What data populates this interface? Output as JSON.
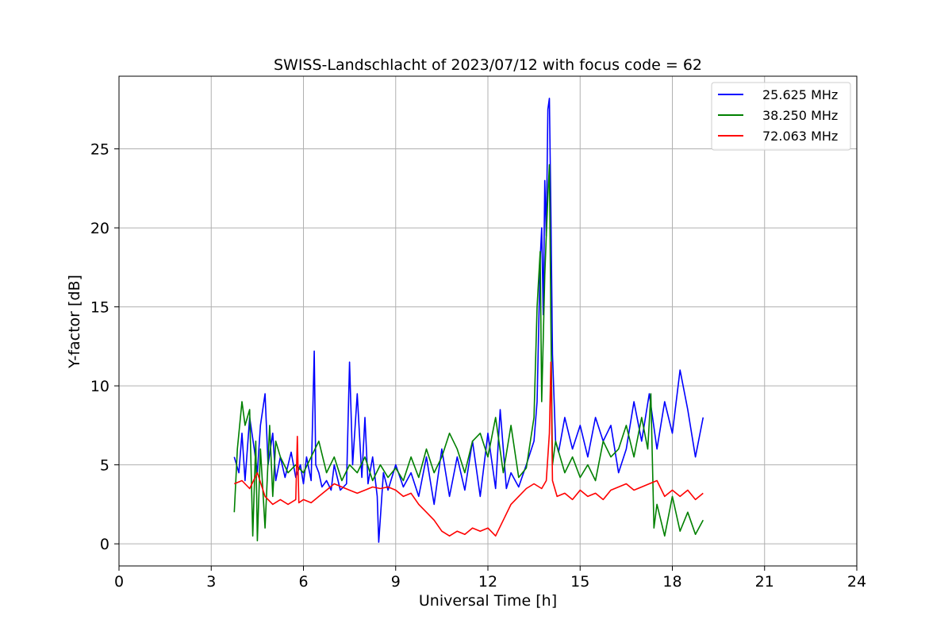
{
  "chart_data": {
    "type": "line",
    "title": "SWISS-Landschlacht of 2023/07/12 with focus code = 62",
    "xlabel": "Universal Time [h]",
    "ylabel": "Y-factor [dB]",
    "xlim": [
      0,
      24
    ],
    "ylim": [
      -1.4,
      29.6
    ],
    "x_ticks": [
      0,
      3,
      6,
      9,
      12,
      15,
      18,
      21,
      24
    ],
    "y_ticks": [
      0,
      5,
      10,
      15,
      20,
      25
    ],
    "grid": true,
    "legend_position": "top-right",
    "series": [
      {
        "name": "25.625 MHz",
        "color": "#0000ff",
        "x": [
          3.75,
          3.9,
          4.0,
          4.1,
          4.25,
          4.4,
          4.5,
          4.6,
          4.75,
          4.85,
          5.0,
          5.1,
          5.25,
          5.4,
          5.6,
          5.75,
          5.9,
          6.0,
          6.1,
          6.25,
          6.35,
          6.4,
          6.5,
          6.6,
          6.75,
          6.9,
          7.0,
          7.2,
          7.4,
          7.5,
          7.6,
          7.75,
          7.9,
          8.0,
          8.1,
          8.25,
          8.4,
          8.45,
          8.6,
          8.75,
          9.0,
          9.25,
          9.5,
          9.75,
          10.0,
          10.25,
          10.5,
          10.75,
          11.0,
          11.25,
          11.5,
          11.75,
          12.0,
          12.25,
          12.4,
          12.6,
          12.75,
          13.0,
          13.25,
          13.5,
          13.6,
          13.7,
          13.75,
          13.8,
          13.85,
          13.9,
          13.95,
          14.0,
          14.05,
          14.1,
          14.2,
          14.3,
          14.5,
          14.75,
          15.0,
          15.25,
          15.5,
          15.75,
          16.0,
          16.25,
          16.5,
          16.75,
          17.0,
          17.25,
          17.5,
          17.75,
          18.0,
          18.25,
          18.5,
          18.75,
          19.0
        ],
        "y": [
          5.5,
          4.5,
          7.0,
          4.0,
          8.0,
          6.0,
          4.5,
          7.5,
          9.5,
          5.0,
          7.0,
          4.0,
          5.5,
          4.2,
          5.8,
          4.2,
          5.0,
          3.8,
          5.5,
          4.0,
          12.2,
          5.0,
          4.5,
          3.6,
          4.0,
          3.4,
          5.0,
          3.4,
          3.8,
          11.5,
          5.0,
          9.5,
          4.2,
          8.0,
          3.8,
          5.5,
          3.0,
          0.1,
          4.5,
          3.4,
          5.0,
          3.6,
          4.5,
          3.0,
          5.5,
          2.5,
          6.0,
          3.0,
          5.5,
          3.4,
          6.5,
          3.0,
          7.0,
          3.5,
          8.5,
          3.5,
          4.5,
          3.6,
          5.0,
          6.5,
          9.0,
          18.0,
          20.0,
          14.5,
          23.0,
          19.5,
          27.5,
          28.2,
          21.0,
          12.0,
          6.5,
          5.8,
          8.0,
          6.0,
          7.5,
          5.5,
          8.0,
          6.5,
          7.5,
          4.5,
          6.0,
          9.0,
          6.5,
          9.5,
          6.0,
          9.0,
          7.0,
          11.0,
          8.5,
          5.5,
          8.0
        ],
        "extra_lines": []
      },
      {
        "name": "38.250 MHz",
        "color": "#008000",
        "x": [
          3.75,
          3.85,
          4.0,
          4.1,
          4.25,
          4.35,
          4.45,
          4.5,
          4.6,
          4.75,
          4.9,
          5.0,
          5.1,
          5.25,
          5.5,
          5.75,
          6.0,
          6.25,
          6.5,
          6.75,
          7.0,
          7.25,
          7.5,
          7.75,
          8.0,
          8.25,
          8.5,
          8.75,
          9.0,
          9.25,
          9.5,
          9.75,
          10.0,
          10.25,
          10.5,
          10.75,
          11.0,
          11.25,
          11.5,
          11.75,
          12.0,
          12.25,
          12.5,
          12.75,
          13.0,
          13.25,
          13.5,
          13.6,
          13.7,
          13.75,
          13.8,
          13.85,
          13.9,
          13.95,
          14.0,
          14.05,
          14.1,
          14.2,
          14.5,
          14.75,
          15.0,
          15.25,
          15.5,
          15.75,
          16.0,
          16.25,
          16.5,
          16.75,
          17.0,
          17.2,
          17.3,
          17.4,
          17.5,
          17.75,
          18.0,
          18.25,
          18.5,
          18.75,
          19.0
        ],
        "y": [
          2.0,
          6.0,
          9.0,
          7.5,
          8.5,
          0.5,
          6.5,
          0.2,
          6.0,
          1.0,
          7.5,
          3.0,
          6.5,
          5.5,
          4.5,
          5.0,
          4.5,
          5.5,
          6.5,
          4.5,
          5.5,
          4.0,
          5.0,
          4.5,
          5.5,
          4.0,
          5.0,
          4.2,
          4.8,
          4.0,
          5.5,
          4.2,
          6.0,
          4.5,
          5.5,
          7.0,
          6.0,
          4.5,
          6.5,
          7.0,
          5.5,
          8.0,
          4.5,
          7.5,
          4.2,
          4.8,
          8.0,
          15.0,
          18.5,
          9.0,
          13.0,
          17.0,
          19.5,
          22.0,
          24.0,
          14.0,
          5.0,
          6.5,
          4.5,
          5.5,
          4.2,
          5.0,
          4.0,
          6.5,
          5.5,
          6.0,
          7.5,
          5.5,
          8.0,
          6.0,
          9.5,
          1.0,
          2.5,
          0.5,
          3.0,
          0.8,
          2.0,
          0.6,
          1.5
        ],
        "extra_lines": []
      },
      {
        "name": "72.063 MHz",
        "color": "#ff0000",
        "x": [
          3.75,
          4.0,
          4.25,
          4.5,
          4.75,
          5.0,
          5.25,
          5.5,
          5.75,
          5.8,
          5.85,
          6.0,
          6.25,
          6.5,
          6.75,
          7.0,
          7.25,
          7.5,
          7.75,
          8.0,
          8.25,
          8.5,
          8.75,
          9.0,
          9.25,
          9.5,
          9.75,
          10.0,
          10.25,
          10.5,
          10.75,
          11.0,
          11.25,
          11.5,
          11.75,
          12.0,
          12.25,
          12.5,
          12.75,
          13.0,
          13.25,
          13.5,
          13.75,
          13.9,
          14.0,
          14.05,
          14.1,
          14.25,
          14.5,
          14.75,
          15.0,
          15.25,
          15.5,
          15.75,
          16.0,
          16.25,
          16.5,
          16.75,
          17.0,
          17.25,
          17.5,
          17.75,
          18.0,
          18.25,
          18.5,
          18.75,
          19.0
        ],
        "y": [
          3.8,
          4.0,
          3.5,
          4.5,
          3.0,
          2.5,
          2.8,
          2.5,
          2.8,
          6.8,
          2.6,
          2.8,
          2.6,
          3.0,
          3.4,
          3.8,
          3.6,
          3.4,
          3.2,
          3.4,
          3.6,
          3.5,
          3.6,
          3.4,
          3.0,
          3.2,
          2.5,
          2.0,
          1.5,
          0.8,
          0.5,
          0.8,
          0.6,
          1.0,
          0.8,
          1.0,
          0.5,
          1.5,
          2.5,
          3.0,
          3.5,
          3.8,
          3.5,
          4.0,
          7.0,
          11.5,
          4.0,
          3.0,
          3.2,
          2.8,
          3.4,
          3.0,
          3.2,
          2.8,
          3.4,
          3.6,
          3.8,
          3.4,
          3.6,
          3.8,
          4.0,
          3.0,
          3.4,
          3.0,
          3.4,
          2.8,
          3.2
        ],
        "extra_lines": []
      }
    ]
  }
}
